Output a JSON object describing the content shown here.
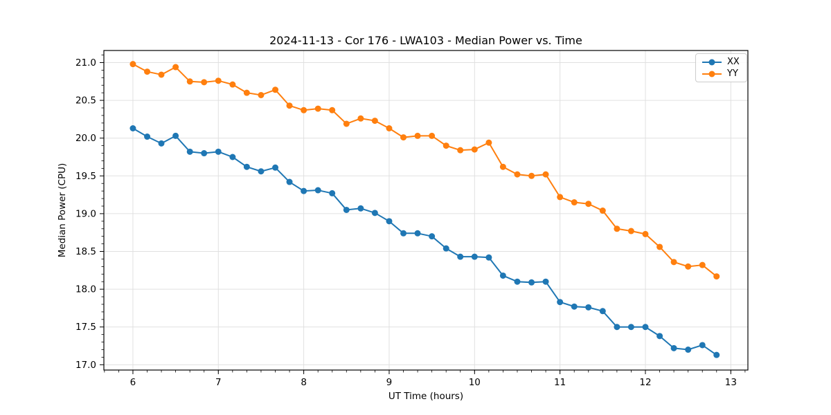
{
  "chart_data": {
    "type": "line",
    "title": "2024-11-13 - Cor 176 - LWA103 - Median Power vs. Time",
    "xlabel": "UT Time (hours)",
    "ylabel": "Median Power (CPU)",
    "xlim": [
      5.66,
      13.2
    ],
    "ylim": [
      16.93,
      21.16
    ],
    "x_ticks": [
      6,
      7,
      8,
      9,
      10,
      11,
      12,
      13
    ],
    "x_tick_labels": [
      "6",
      "7",
      "8",
      "9",
      "10",
      "11",
      "12",
      "13"
    ],
    "y_ticks": [
      17.0,
      17.5,
      18.0,
      18.5,
      19.0,
      19.5,
      20.0,
      20.5,
      21.0
    ],
    "y_tick_labels": [
      "17.0",
      "17.5",
      "18.0",
      "18.5",
      "19.0",
      "19.5",
      "20.0",
      "20.5",
      "21.0"
    ],
    "x_minor_step": 0.166667,
    "y_minor_step": 0.1,
    "grid": true,
    "grid_color": "#e0e0e0",
    "frame_color": "#000000",
    "legend_position": "upper right",
    "x": [
      6.0,
      6.167,
      6.333,
      6.5,
      6.667,
      6.833,
      7.0,
      7.167,
      7.333,
      7.5,
      7.667,
      7.833,
      8.0,
      8.167,
      8.333,
      8.5,
      8.667,
      8.833,
      9.0,
      9.167,
      9.333,
      9.5,
      9.667,
      9.833,
      10.0,
      10.167,
      10.333,
      10.5,
      10.667,
      10.833,
      11.0,
      11.167,
      11.333,
      11.5,
      11.667,
      11.833,
      12.0,
      12.167,
      12.333,
      12.5,
      12.667,
      12.833
    ],
    "series": [
      {
        "name": "XX",
        "color": "#1f77b4",
        "values": [
          20.13,
          20.02,
          19.93,
          20.03,
          19.82,
          19.8,
          19.82,
          19.75,
          19.62,
          19.56,
          19.61,
          19.42,
          19.3,
          19.31,
          19.27,
          19.05,
          19.07,
          19.01,
          18.9,
          18.74,
          18.74,
          18.7,
          18.54,
          18.43,
          18.43,
          18.42,
          18.18,
          18.1,
          18.09,
          18.1,
          17.83,
          17.77,
          17.76,
          17.71,
          17.5,
          17.5,
          17.5,
          17.38,
          17.22,
          17.2,
          17.26,
          17.13
        ]
      },
      {
        "name": "YY",
        "color": "#ff7f0e",
        "values": [
          20.98,
          20.88,
          20.84,
          20.94,
          20.75,
          20.74,
          20.76,
          20.71,
          20.6,
          20.57,
          20.64,
          20.43,
          20.37,
          20.39,
          20.37,
          20.19,
          20.26,
          20.23,
          20.13,
          20.01,
          20.03,
          20.03,
          19.9,
          19.84,
          19.85,
          19.94,
          19.62,
          19.52,
          19.5,
          19.52,
          19.22,
          19.15,
          19.13,
          19.04,
          18.8,
          18.77,
          18.73,
          18.56,
          18.36,
          18.3,
          18.32,
          18.17
        ]
      }
    ]
  }
}
